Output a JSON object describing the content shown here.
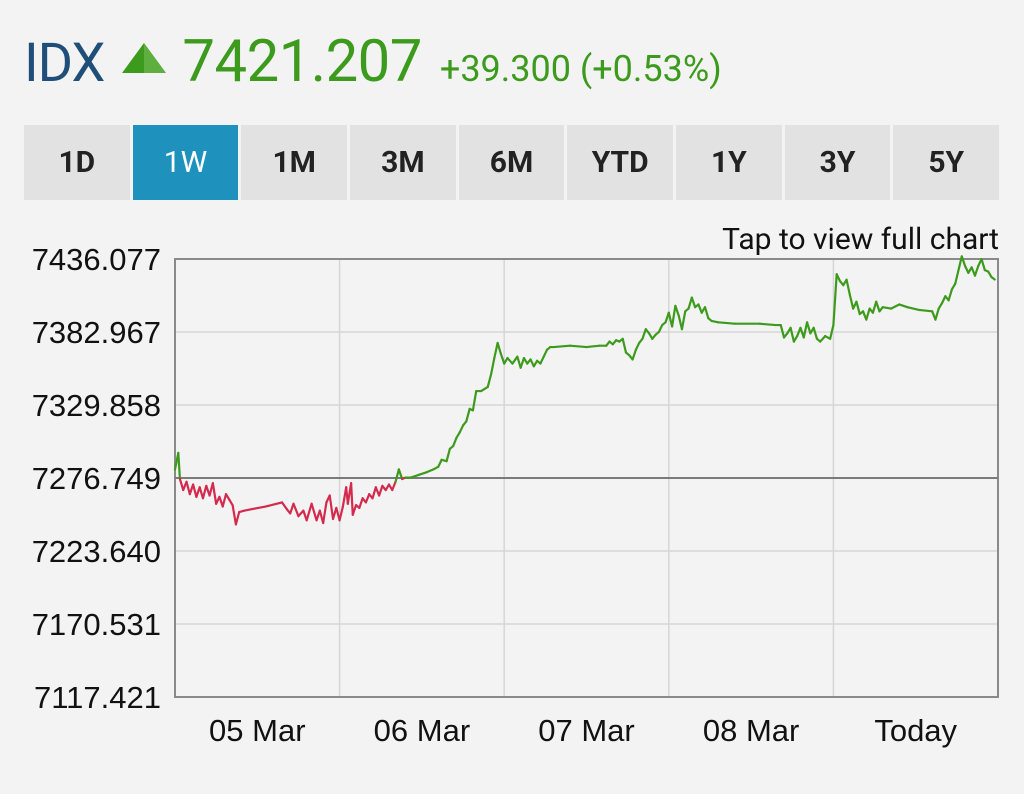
{
  "header": {
    "ticker": "IDX",
    "price": "7421.207",
    "change": "+39.300 (+0.53%)"
  },
  "tabs": [
    {
      "label": "1D",
      "active": false
    },
    {
      "label": "1W",
      "active": true
    },
    {
      "label": "1M",
      "active": false
    },
    {
      "label": "3M",
      "active": false
    },
    {
      "label": "6M",
      "active": false
    },
    {
      "label": "YTD",
      "active": false
    },
    {
      "label": "1Y",
      "active": false
    },
    {
      "label": "3Y",
      "active": false
    },
    {
      "label": "5Y",
      "active": false
    }
  ],
  "tap_text": "Tap to view full chart",
  "colors": {
    "up": "#3c9a1c",
    "down": "#d42a4e",
    "ticker": "#1f4e79",
    "active_tab": "#1e92bd",
    "grid": "#d6d6d6"
  },
  "chart_data": {
    "type": "line",
    "y_ticks": [
      "7436.077",
      "7382.967",
      "7329.858",
      "7276.749",
      "7223.640",
      "7170.531",
      "7117.421"
    ],
    "x_ticks": [
      "05 Mar",
      "06 Mar",
      "07 Mar",
      "08 Mar",
      "Today"
    ],
    "ylim": [
      7117.421,
      7436.077
    ],
    "xlim": [
      0,
      5
    ],
    "baseline": 7276.749,
    "grid": true,
    "series": [
      {
        "color_up": "#3c9a1c",
        "color_down": "#d42a4e",
        "points": [
          [
            0.0,
            7283.0
          ],
          [
            0.02,
            7295.0
          ],
          [
            0.03,
            7276.0
          ],
          [
            0.05,
            7268.0
          ],
          [
            0.07,
            7274.0
          ],
          [
            0.09,
            7265.0
          ],
          [
            0.11,
            7272.0
          ],
          [
            0.13,
            7263.0
          ],
          [
            0.15,
            7270.0
          ],
          [
            0.17,
            7262.0
          ],
          [
            0.19,
            7271.0
          ],
          [
            0.21,
            7264.0
          ],
          [
            0.23,
            7273.0
          ],
          [
            0.25,
            7258.0
          ],
          [
            0.27,
            7263.0
          ],
          [
            0.29,
            7256.0
          ],
          [
            0.31,
            7265.0
          ],
          [
            0.33,
            7261.0
          ],
          [
            0.35,
            7257.0
          ],
          [
            0.37,
            7243.0
          ],
          [
            0.39,
            7252.0
          ],
          [
            0.42,
            7253.0
          ],
          [
            0.55,
            7256.0
          ],
          [
            0.65,
            7259.0
          ],
          [
            0.68,
            7254.0
          ],
          [
            0.7,
            7251.0
          ],
          [
            0.72,
            7258.0
          ],
          [
            0.75,
            7249.0
          ],
          [
            0.78,
            7253.0
          ],
          [
            0.8,
            7246.0
          ],
          [
            0.83,
            7258.0
          ],
          [
            0.86,
            7246.0
          ],
          [
            0.88,
            7253.0
          ],
          [
            0.9,
            7244.0
          ],
          [
            0.92,
            7259.0
          ],
          [
            0.94,
            7264.0
          ],
          [
            0.96,
            7247.0
          ],
          [
            0.98,
            7255.0
          ],
          [
            1.0,
            7246.0
          ],
          [
            1.02,
            7256.0
          ],
          [
            1.04,
            7270.0
          ],
          [
            1.05,
            7258.0
          ],
          [
            1.07,
            7273.0
          ],
          [
            1.08,
            7250.0
          ],
          [
            1.1,
            7257.0
          ],
          [
            1.12,
            7255.0
          ],
          [
            1.14,
            7262.0
          ],
          [
            1.16,
            7259.0
          ],
          [
            1.18,
            7265.0
          ],
          [
            1.2,
            7262.0
          ],
          [
            1.22,
            7270.0
          ],
          [
            1.24,
            7264.0
          ],
          [
            1.26,
            7271.0
          ],
          [
            1.28,
            7268.0
          ],
          [
            1.3,
            7272.0
          ],
          [
            1.32,
            7268.0
          ],
          [
            1.34,
            7274.0
          ],
          [
            1.36,
            7283.0
          ],
          [
            1.38,
            7276.0
          ],
          [
            1.4,
            7277.0
          ],
          [
            1.43,
            7277.0
          ],
          [
            1.48,
            7279.0
          ],
          [
            1.53,
            7281.0
          ],
          [
            1.57,
            7283.0
          ],
          [
            1.6,
            7285.0
          ],
          [
            1.62,
            7290.0
          ],
          [
            1.65,
            7289.0
          ],
          [
            1.67,
            7298.0
          ],
          [
            1.69,
            7300.0
          ],
          [
            1.71,
            7306.0
          ],
          [
            1.73,
            7310.0
          ],
          [
            1.75,
            7315.0
          ],
          [
            1.77,
            7318.0
          ],
          [
            1.79,
            7327.0
          ],
          [
            1.81,
            7326.0
          ],
          [
            1.83,
            7340.0
          ],
          [
            1.86,
            7340.0
          ],
          [
            1.9,
            7343.0
          ],
          [
            1.92,
            7352.0
          ],
          [
            1.94,
            7364.0
          ],
          [
            1.96,
            7375.0
          ],
          [
            1.98,
            7367.0
          ],
          [
            2.0,
            7360.0
          ],
          [
            2.02,
            7364.0
          ],
          [
            2.05,
            7360.0
          ],
          [
            2.08,
            7365.0
          ],
          [
            2.1,
            7357.0
          ],
          [
            2.12,
            7364.0
          ],
          [
            2.14,
            7360.0
          ],
          [
            2.16,
            7363.0
          ],
          [
            2.18,
            7358.0
          ],
          [
            2.2,
            7362.0
          ],
          [
            2.22,
            7360.0
          ],
          [
            2.24,
            7365.0
          ],
          [
            2.26,
            7370.0
          ],
          [
            2.28,
            7372.0
          ],
          [
            2.3,
            7372.0
          ],
          [
            2.4,
            7373.0
          ],
          [
            2.5,
            7372.0
          ],
          [
            2.58,
            7373.0
          ],
          [
            2.62,
            7373.0
          ],
          [
            2.64,
            7376.0
          ],
          [
            2.66,
            7374.0
          ],
          [
            2.68,
            7377.0
          ],
          [
            2.7,
            7376.0
          ],
          [
            2.72,
            7378.0
          ],
          [
            2.74,
            7368.0
          ],
          [
            2.76,
            7366.0
          ],
          [
            2.78,
            7363.0
          ],
          [
            2.8,
            7370.0
          ],
          [
            2.82,
            7375.0
          ],
          [
            2.84,
            7378.0
          ],
          [
            2.86,
            7385.0
          ],
          [
            2.88,
            7382.0
          ],
          [
            2.9,
            7378.0
          ],
          [
            2.92,
            7381.0
          ],
          [
            2.94,
            7383.0
          ],
          [
            2.96,
            7388.0
          ],
          [
            2.98,
            7390.0
          ],
          [
            3.0,
            7397.0
          ],
          [
            3.02,
            7387.0
          ],
          [
            3.04,
            7402.0
          ],
          [
            3.06,
            7395.0
          ],
          [
            3.08,
            7385.0
          ],
          [
            3.1,
            7398.0
          ],
          [
            3.12,
            7400.0
          ],
          [
            3.14,
            7408.0
          ],
          [
            3.16,
            7401.0
          ],
          [
            3.18,
            7403.0
          ],
          [
            3.2,
            7397.0
          ],
          [
            3.22,
            7401.0
          ],
          [
            3.24,
            7393.0
          ],
          [
            3.26,
            7391.0
          ],
          [
            3.3,
            7390.0
          ],
          [
            3.4,
            7389.0
          ],
          [
            3.55,
            7389.0
          ],
          [
            3.65,
            7388.0
          ],
          [
            3.68,
            7388.0
          ],
          [
            3.7,
            7379.0
          ],
          [
            3.72,
            7382.0
          ],
          [
            3.74,
            7386.0
          ],
          [
            3.76,
            7376.0
          ],
          [
            3.78,
            7380.0
          ],
          [
            3.8,
            7386.0
          ],
          [
            3.82,
            7379.0
          ],
          [
            3.84,
            7390.0
          ],
          [
            3.86,
            7382.0
          ],
          [
            3.88,
            7386.0
          ],
          [
            3.9,
            7378.0
          ],
          [
            3.92,
            7376.0
          ],
          [
            3.95,
            7380.0
          ],
          [
            3.98,
            7378.0
          ],
          [
            4.0,
            7388.0
          ],
          [
            4.02,
            7425.0
          ],
          [
            4.04,
            7420.0
          ],
          [
            4.06,
            7417.0
          ],
          [
            4.08,
            7421.0
          ],
          [
            4.1,
            7410.0
          ],
          [
            4.12,
            7400.0
          ],
          [
            4.14,
            7405.0
          ],
          [
            4.16,
            7396.0
          ],
          [
            4.18,
            7398.0
          ],
          [
            4.2,
            7392.0
          ],
          [
            4.22,
            7400.0
          ],
          [
            4.24,
            7397.0
          ],
          [
            4.26,
            7405.0
          ],
          [
            4.28,
            7398.0
          ],
          [
            4.3,
            7401.0
          ],
          [
            4.35,
            7400.0
          ],
          [
            4.4,
            7403.0
          ],
          [
            4.45,
            7401.0
          ],
          [
            4.52,
            7399.0
          ],
          [
            4.6,
            7398.0
          ],
          [
            4.62,
            7392.0
          ],
          [
            4.64,
            7400.0
          ],
          [
            4.66,
            7404.0
          ],
          [
            4.68,
            7409.0
          ],
          [
            4.7,
            7406.0
          ],
          [
            4.72,
            7414.0
          ],
          [
            4.74,
            7418.0
          ],
          [
            4.76,
            7428.0
          ],
          [
            4.78,
            7438.0
          ],
          [
            4.8,
            7431.0
          ],
          [
            4.82,
            7426.0
          ],
          [
            4.84,
            7430.0
          ],
          [
            4.86,
            7424.0
          ],
          [
            4.88,
            7431.0
          ],
          [
            4.9,
            7436.0
          ],
          [
            4.92,
            7428.0
          ],
          [
            4.94,
            7427.0
          ],
          [
            4.96,
            7423.0
          ],
          [
            4.98,
            7421.2
          ]
        ]
      }
    ]
  }
}
